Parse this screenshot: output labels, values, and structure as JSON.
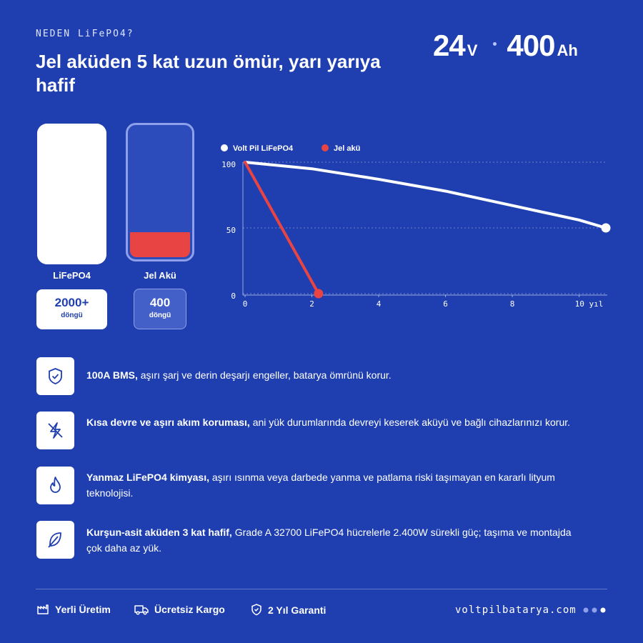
{
  "header": {
    "eyebrow": "NEDEN LiFePO4?",
    "title": "Jel aküden 5 kat uzun ömür, yarı yarıya hafif"
  },
  "specs": [
    {
      "value": 24,
      "unit": "V"
    },
    {
      "value": 400,
      "unit": "Ah"
    }
  ],
  "cycle_bars": [
    {
      "label": "LiFePO4",
      "value": 2000,
      "value_label": "2000+",
      "unit": "döngü"
    },
    {
      "label": "Jel Akü",
      "value": 400,
      "unit": "döngü"
    }
  ],
  "chart_data": {
    "type": "line",
    "series": [
      {
        "name": "Volt Pil LiFePO4",
        "color": "#ffffff",
        "x": [
          0,
          2,
          4,
          6,
          8,
          10,
          10.8
        ],
        "values": [
          100,
          95,
          87,
          78,
          67,
          56,
          50
        ]
      },
      {
        "name": "Jel akü",
        "color": "#e84444",
        "x": [
          0,
          2.2
        ],
        "values": [
          100,
          0
        ]
      }
    ],
    "xlim": [
      0,
      10.8
    ],
    "xticks": [
      0,
      2,
      4,
      6,
      8,
      {
        "value": 10,
        "label": "10 yıl"
      }
    ],
    "ylim": [
      0,
      100
    ],
    "yticks": [
      0,
      50,
      100
    ],
    "grid": true
  },
  "features": [
    {
      "bold": "100A BMS,",
      "text": "aşırı şarj ve derin deşarjı engeller, batarya ömrünü korur."
    },
    {
      "bold": "Kısa devre ve aşırı akım koruması,",
      "text": "ani yük durumlarında devreyi keserek aküyü ve bağlı cihazlarınızı korur."
    },
    {
      "bold": "Yanmaz LiFePO4 kimyası,",
      "text": "aşırı ısınma veya darbede yanma ve patlama riski taşımayan en kararlı lityum teknolojisi."
    },
    {
      "bold": "Kurşun-asit aküden 3 kat hafif,",
      "text": "Grade A 32700 LiFePO4 hücrelerle 2.400W sürekli güç; taşıma ve montajda çok daha az yük."
    }
  ],
  "footer": {
    "badges": [
      "Yerli Üretim",
      "Ücretsiz Kargo",
      "2 Yıl Garanti"
    ],
    "url": "voltpilbatarya.com"
  }
}
